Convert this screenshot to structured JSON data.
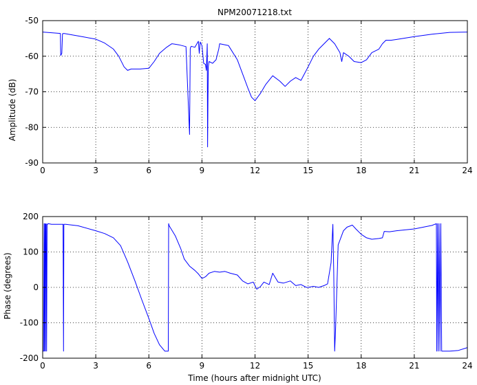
{
  "chart_data": [
    {
      "type": "line",
      "title": "NPM20071218.txt",
      "xlabel": "",
      "ylabel": "Amplitude (dB)",
      "xlim": [
        0,
        24
      ],
      "ylim": [
        -90,
        -50
      ],
      "xticks": [
        "0",
        "3",
        "6",
        "9",
        "12",
        "15",
        "18",
        "21",
        "24"
      ],
      "yticks": [
        "-90",
        "-80",
        "-70",
        "-60",
        "-50"
      ],
      "grid": true,
      "series": [
        {
          "color": "#0000ff",
          "x": [
            0,
            1.0,
            1.02,
            1.08,
            1.12,
            1.2,
            2,
            3,
            3.5,
            4,
            4.3,
            4.6,
            4.8,
            5,
            5.5,
            6,
            6.3,
            6.6,
            7,
            7.3,
            7.7,
            8.1,
            8.3,
            8.32,
            8.34,
            8.36,
            8.4,
            8.6,
            8.8,
            8.85,
            8.9,
            9.0,
            9.1,
            9.2,
            9.25,
            9.3,
            9.32,
            9.34,
            9.36,
            9.4,
            9.6,
            9.8,
            9.95,
            10,
            10.5,
            11,
            11.3,
            11.6,
            11.8,
            12,
            12.3,
            12.6,
            13,
            13.4,
            13.7,
            14,
            14.3,
            14.6,
            15,
            15.3,
            15.6,
            16,
            16.2,
            16.5,
            16.8,
            16.9,
            17,
            17.3,
            17.6,
            18,
            18.3,
            18.6,
            19,
            19.2,
            19.4,
            19.7,
            20,
            21,
            22,
            23,
            24
          ],
          "y": [
            -53.2,
            -53.6,
            -59.8,
            -59.2,
            -53.7,
            -53.6,
            -54.3,
            -55.2,
            -56.3,
            -58,
            -60,
            -63,
            -64,
            -63.6,
            -63.6,
            -63.4,
            -61.5,
            -59.2,
            -57.5,
            -56.5,
            -56.8,
            -57.3,
            -82,
            -70,
            -58,
            -57.5,
            -57.2,
            -57.5,
            -55.8,
            -59.2,
            -56,
            -57,
            -62,
            -62.3,
            -64,
            -56.5,
            -85.5,
            -73,
            -63,
            -61.5,
            -62,
            -61,
            -58,
            -56.5,
            -57,
            -61,
            -65,
            -69,
            -71.5,
            -72.5,
            -70.5,
            -68,
            -65.5,
            -67,
            -68.5,
            -67,
            -66,
            -66.8,
            -63,
            -60,
            -58,
            -56,
            -55,
            -56.5,
            -59,
            -61.5,
            -59,
            -60,
            -61.5,
            -61.8,
            -61,
            -59,
            -58,
            -56.5,
            -55.5,
            -55.5,
            -55.3,
            -54.5,
            -53.8,
            -53.3,
            -53.2
          ]
        }
      ]
    },
    {
      "type": "line",
      "title": "",
      "xlabel": "Time (hours after midnight UTC)",
      "ylabel": "Phase (degrees)",
      "xlim": [
        0,
        24
      ],
      "ylim": [
        -200,
        200
      ],
      "xticks": [
        "0",
        "3",
        "6",
        "9",
        "12",
        "15",
        "18",
        "21",
        "24"
      ],
      "yticks": [
        "-200",
        "-100",
        "0",
        "100",
        "200"
      ],
      "grid": true,
      "series": [
        {
          "color": "#0000ff",
          "x": [
            0,
            0.05,
            0.08,
            0.11,
            0.13,
            0.15,
            0.17,
            0.2,
            0.22,
            0.25,
            0.28,
            0.3,
            0.5,
            1.0,
            1.15,
            1.18,
            1.2,
            1.3,
            2,
            3,
            3.5,
            4,
            4.4,
            4.8,
            5.2,
            5.6,
            6,
            6.3,
            6.6,
            6.9,
            7.1,
            7.12,
            7.15,
            7.5,
            7.8,
            8,
            8.3,
            8.6,
            8.8,
            9,
            9.2,
            9.4,
            9.7,
            10,
            10.3,
            10.6,
            11,
            11.3,
            11.6,
            11.9,
            12.1,
            12.3,
            12.5,
            12.8,
            13.0,
            13.3,
            13.6,
            14,
            14.3,
            14.6,
            14.9,
            15,
            15.3,
            15.6,
            15.9,
            16.1,
            16.3,
            16.4,
            16.45,
            16.5,
            16.55,
            16.7,
            17,
            17.2,
            17.5,
            17.7,
            18,
            18.3,
            18.6,
            19,
            19.2,
            19.3,
            19.6,
            20,
            21,
            22,
            22.25,
            22.27,
            22.32,
            22.35,
            22.4,
            22.45,
            22.5,
            22.55,
            22.6,
            23,
            23.5,
            24
          ],
          "y": [
            -180,
            -180,
            180,
            -180,
            180,
            -180,
            178,
            180,
            -180,
            178,
            178,
            180,
            178,
            178,
            178,
            -180,
            178,
            178,
            174,
            160,
            152,
            140,
            118,
            72,
            20,
            -35,
            -88,
            -130,
            -162,
            -180,
            -180,
            180,
            174,
            145,
            110,
            80,
            60,
            48,
            38,
            25,
            30,
            40,
            45,
            43,
            45,
            40,
            35,
            18,
            10,
            15,
            -5,
            2,
            15,
            8,
            40,
            15,
            12,
            18,
            5,
            8,
            0,
            0,
            3,
            0,
            5,
            10,
            70,
            178,
            40,
            -180,
            -120,
            120,
            160,
            170,
            176,
            165,
            150,
            140,
            136,
            138,
            140,
            158,
            157,
            160,
            165,
            175,
            180,
            -180,
            180,
            -180,
            180,
            -180,
            180,
            -180,
            -180,
            -180,
            -178,
            -170
          ]
        }
      ]
    }
  ]
}
